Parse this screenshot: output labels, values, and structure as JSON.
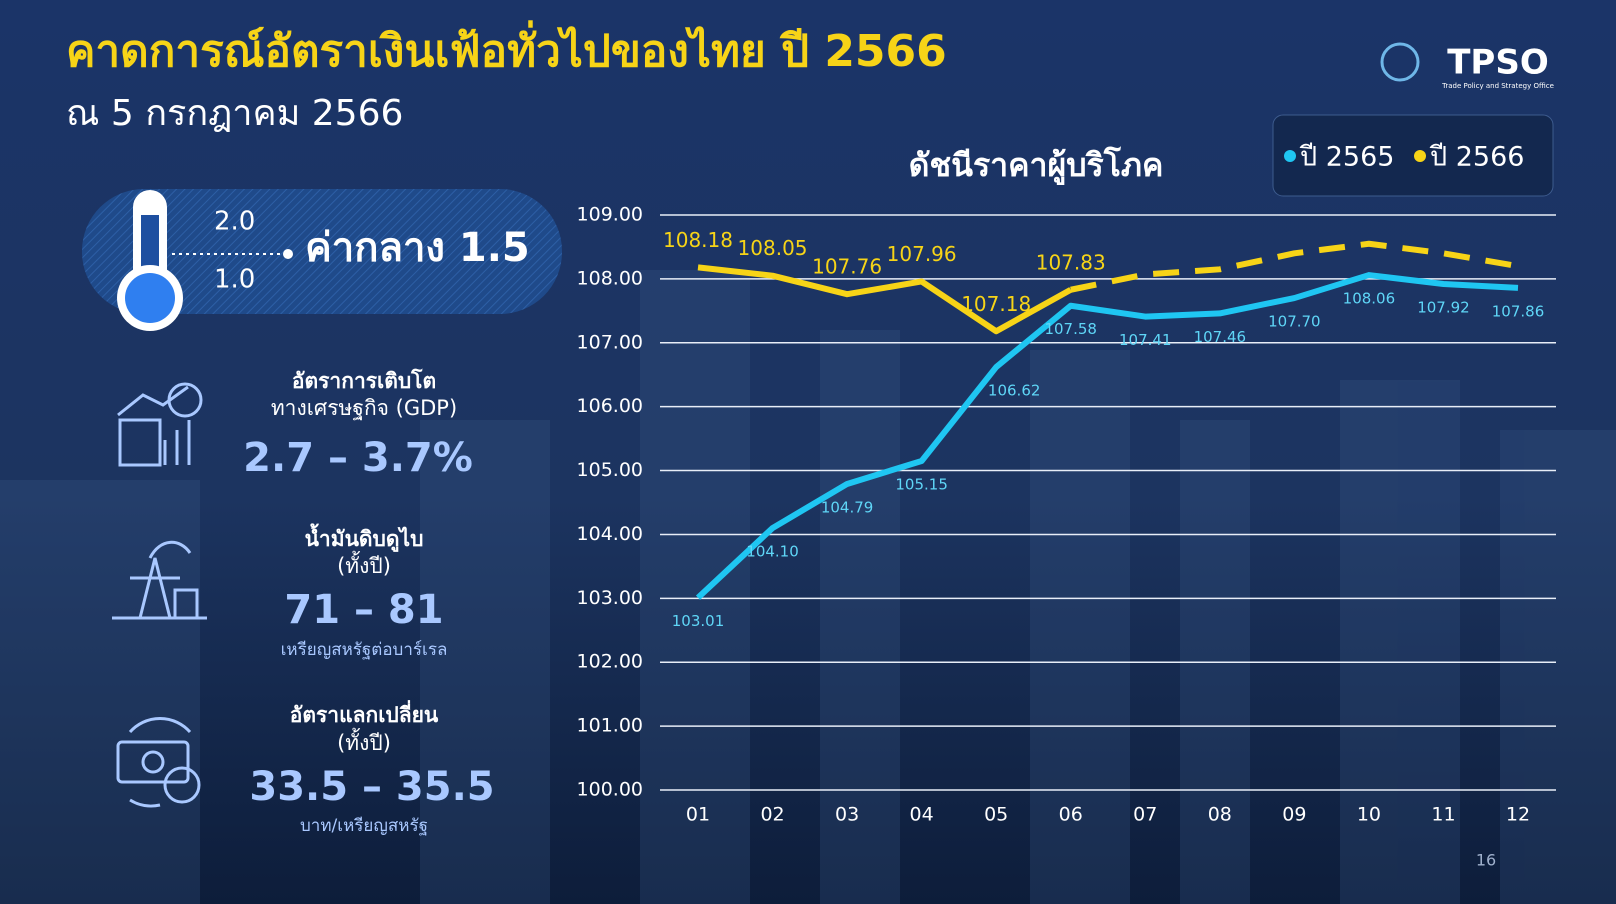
{
  "header": {
    "title": "คาดการณ์อัตราเงินเฟ้อทั่วไปของไทย ปี 2566",
    "subtitle": "ณ 5 กรกฎาคม 2566"
  },
  "logo": {
    "name": "TPSO",
    "tagline": "Trade Policy and Strategy Office"
  },
  "inflation": {
    "high": "2.0",
    "low": "1.0",
    "label": "ค่ากลาง 1.5"
  },
  "indicators": [
    {
      "lines": [
        "อัตราการเติบโต",
        "ทางเศรษฐกิจ (GDP)"
      ],
      "value": "2.7 – 3.7%"
    },
    {
      "lines": [
        "น้ำมันดิบดูไบ",
        "(ทั้งปี)"
      ],
      "value": "71 – 81",
      "unit": "เหรียญสหรัฐต่อบาร์เรล"
    },
    {
      "lines": [
        "อัตราแลกเปลี่ยน",
        "(ทั้งปี)"
      ],
      "value": "33.5 – 35.5",
      "unit": "บาท/เหรียญสหรัฐ"
    }
  ],
  "page_number": "16",
  "chart_data": {
    "type": "line",
    "title": "ดัชนีราคาผู้บริโภค",
    "categories": [
      "01",
      "02",
      "03",
      "04",
      "05",
      "06",
      "07",
      "08",
      "09",
      "10",
      "11",
      "12"
    ],
    "series": [
      {
        "name": "ปี 2565",
        "color": "#1fc6f2",
        "values": [
          103.01,
          104.1,
          104.79,
          105.15,
          106.62,
          107.58,
          107.41,
          107.46,
          107.7,
          108.06,
          107.92,
          107.86
        ],
        "value_labels": [
          "103.01",
          "104.10",
          "104.79",
          "105.15",
          "106.62",
          "107.58",
          "107.41",
          "107.46",
          "107.70",
          "108.06",
          "107.92",
          "107.86"
        ]
      },
      {
        "name": "ปี 2566",
        "color": "#f7d417",
        "dashed_from_index": 5,
        "values": [
          108.18,
          108.05,
          107.76,
          107.96,
          107.18,
          107.83,
          108.07,
          108.15,
          108.4,
          108.55,
          108.4,
          108.2
        ],
        "value_labels": [
          "108.18",
          "108.05",
          "107.76",
          "107.96",
          "107.18",
          "107.83",
          null,
          null,
          null,
          null,
          null,
          null
        ]
      }
    ],
    "ylim": [
      100,
      109
    ],
    "yticks": [
      {
        "value": 100,
        "label": "100.00"
      },
      {
        "value": 101,
        "label": "101.00"
      },
      {
        "value": 102,
        "label": "102.00"
      },
      {
        "value": 103,
        "label": "103.00"
      },
      {
        "value": 104,
        "label": "104.00"
      },
      {
        "value": 105,
        "label": "105.00"
      },
      {
        "value": 106,
        "label": "106.00"
      },
      {
        "value": 107,
        "label": "107.00"
      },
      {
        "value": 108,
        "label": "108.00"
      },
      {
        "value": 109,
        "label": "109.00"
      }
    ],
    "grid": true,
    "legend": "top-right"
  }
}
